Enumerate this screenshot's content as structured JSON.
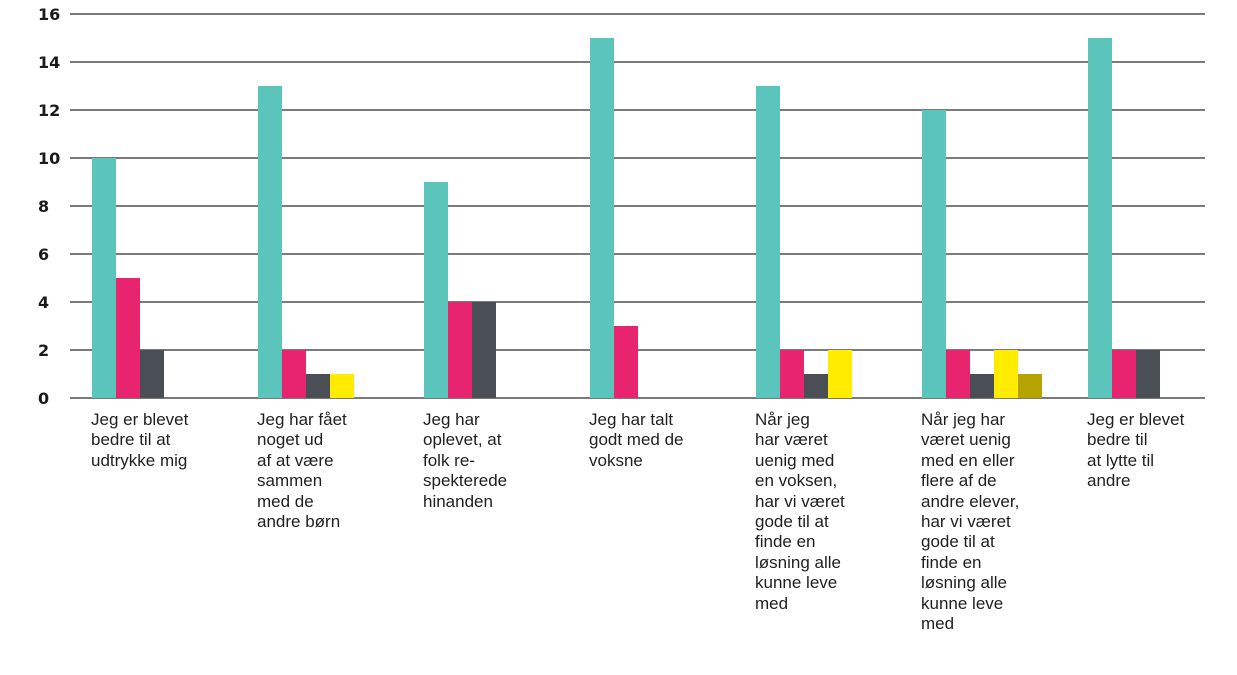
{
  "chart_data": {
    "type": "bar",
    "ylim": [
      0,
      16
    ],
    "yticks": [
      0,
      2,
      4,
      6,
      8,
      10,
      12,
      14,
      16
    ],
    "grid": true,
    "categories": [
      "Jeg er blevet\nbedre til at\nudtrykke mig",
      "Jeg har fået\nnoget ud\naf at være\nsammen\nmed de\nandre børn",
      "Jeg har\noplevet, at\nfolk re-\nspekterede\nhinanden",
      "Jeg har talt\ngodt med de\nvoksne",
      "Når jeg\nhar været\nuenig med\nen voksen,\nhar vi været\ngode til at\nfinde en\nløsning alle\nkunne leve\nmed",
      "Når jeg har\nværet uenig\nmed en eller\nflere af de\nandre elever,\nhar vi været\ngode til at\nfinde en\nløsning alle\nkunne leve\nmed",
      "Jeg er blevet\nbedre til\nat lytte til\nandre"
    ],
    "series": [
      {
        "color": "#5BC5BC",
        "values": [
          10,
          13,
          9,
          15,
          13,
          12,
          15
        ]
      },
      {
        "color": "#E8246E",
        "values": [
          5,
          2,
          4,
          3,
          2,
          2,
          2
        ]
      },
      {
        "color": "#4A4F55",
        "values": [
          2,
          1,
          4,
          0,
          1,
          1,
          2
        ]
      },
      {
        "color": "#FFEC00",
        "values": [
          0,
          1,
          0,
          0,
          2,
          2,
          0
        ]
      },
      {
        "color": "#B5A300",
        "values": [
          0,
          0,
          0,
          0,
          0,
          1,
          0
        ]
      }
    ]
  }
}
